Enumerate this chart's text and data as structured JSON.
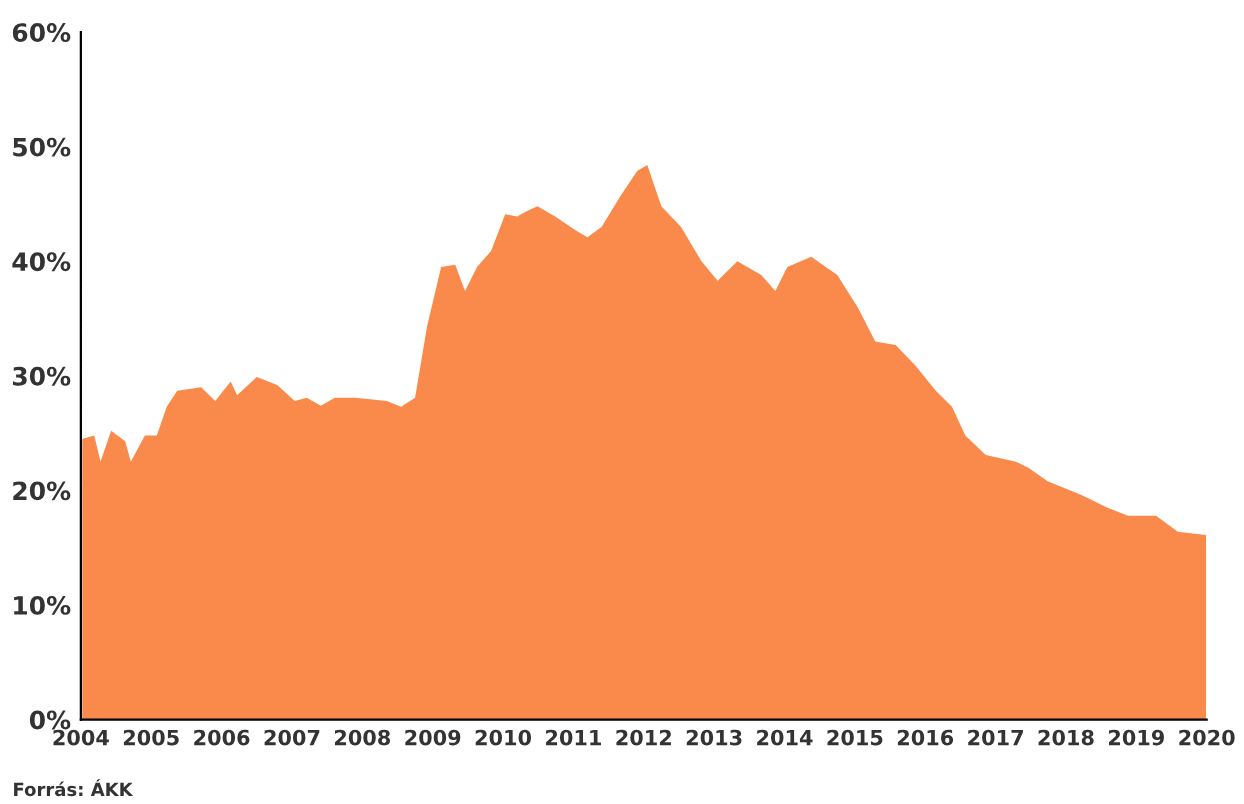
{
  "chart_data": {
    "type": "area",
    "x": [
      2004.02,
      2004.19,
      2004.28,
      2004.43,
      2004.63,
      2004.71,
      2004.91,
      2005.08,
      2005.22,
      2005.37,
      2005.71,
      2005.91,
      2006.13,
      2006.22,
      2006.5,
      2006.79,
      2007.04,
      2007.21,
      2007.41,
      2007.61,
      2007.9,
      2008.35,
      2008.55,
      2008.75,
      2008.92,
      2009.12,
      2009.32,
      2009.46,
      2009.63,
      2009.83,
      2010.03,
      2010.2,
      2010.34,
      2010.49,
      2010.74,
      2011.03,
      2011.2,
      2011.4,
      2011.68,
      2011.91,
      2012.05,
      2012.25,
      2012.53,
      2012.82,
      2013.05,
      2013.33,
      2013.67,
      2013.87,
      2014.04,
      2014.38,
      2014.75,
      2015.04,
      2015.29,
      2015.58,
      2015.86,
      2016.15,
      2016.38,
      2016.57,
      2016.86,
      2017.29,
      2017.46,
      2017.74,
      2018.22,
      2018.59,
      2018.88,
      2019.28,
      2019.59,
      2019.99
    ],
    "series": [
      {
        "color": "#f98a4c",
        "values": [
          24.5,
          24.8,
          22.5,
          25.2,
          24.3,
          22.5,
          24.8,
          24.8,
          27.3,
          28.7,
          29,
          27.8,
          29.5,
          28.3,
          29.9,
          29.2,
          27.8,
          28.1,
          27.4,
          28.1,
          28.1,
          27.8,
          27.3,
          28.1,
          34.3,
          39.5,
          39.7,
          37.4,
          39.5,
          40.9,
          44.1,
          43.9,
          44.4,
          44.8,
          43.9,
          42.7,
          42.1,
          43,
          45.8,
          47.9,
          48.4,
          44.8,
          43,
          40,
          38.3,
          40,
          38.8,
          37.4,
          39.5,
          40.4,
          38.8,
          36,
          33,
          32.7,
          30.9,
          28.7,
          27.3,
          24.8,
          23.1,
          22.5,
          22,
          20.8,
          19.6,
          18.5,
          17.8,
          17.8,
          16.4,
          16.1
        ]
      }
    ],
    "xlim": [
      2004,
      2020
    ],
    "xticks": [
      2004,
      2005,
      2006,
      2007,
      2008,
      2009,
      2010,
      2011,
      2012,
      2013,
      2014,
      2015,
      2016,
      2017,
      2018,
      2019,
      2020
    ],
    "ylim": [
      0,
      60
    ],
    "yticks": [
      {
        "value": 0,
        "label": "0%"
      },
      {
        "value": 10,
        "label": "10%"
      },
      {
        "value": 20,
        "label": "20%"
      },
      {
        "value": 30,
        "label": "30%"
      },
      {
        "value": 40,
        "label": "40%"
      },
      {
        "value": 50,
        "label": "50%"
      },
      {
        "value": 60,
        "label": "60%"
      }
    ],
    "grid": false,
    "annotations": [
      "Forrás: ÁKK"
    ]
  }
}
